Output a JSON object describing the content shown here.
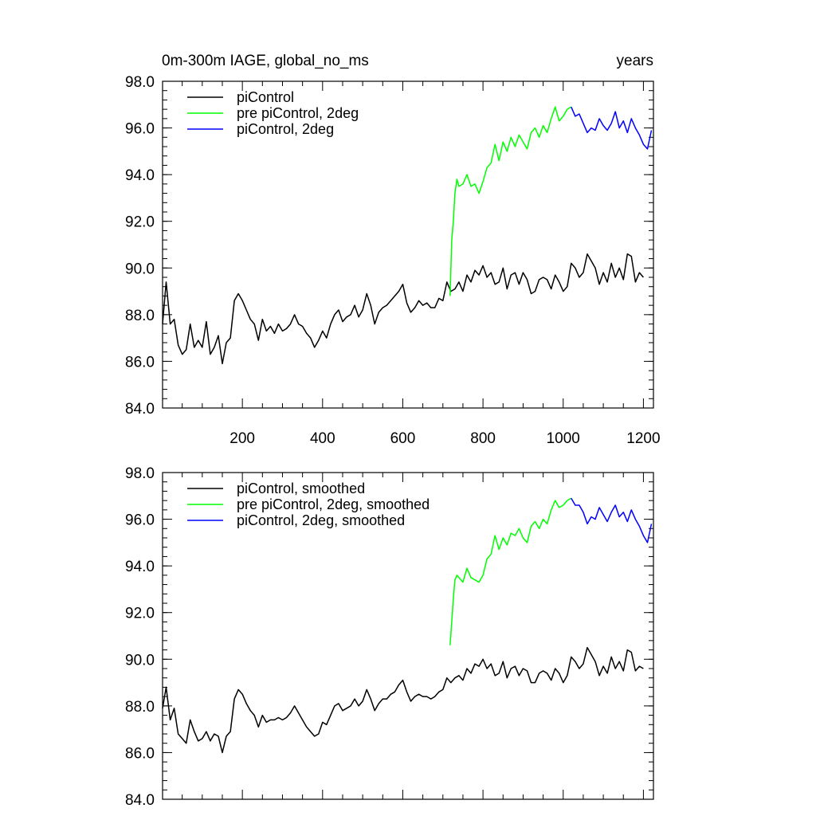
{
  "figure": {
    "title_left": "0m-300m IAGE, global_no_ms",
    "title_right": "years"
  },
  "colors": {
    "piControl": "#000000",
    "pre_piControl_2deg": "#00ff00",
    "piControl_2deg": "#0000ff"
  },
  "chart_data": [
    {
      "type": "line",
      "panel": "raw",
      "title": "0m-300m IAGE, global_no_ms",
      "xlabel": "years",
      "ylabel": "",
      "xlim": [
        1,
        1225
      ],
      "ylim": [
        84.0,
        98.0
      ],
      "x_ticks": [
        200,
        400,
        600,
        800,
        1000,
        1200
      ],
      "x_tick_labels": [
        "200",
        "400",
        "600",
        "800",
        "1000",
        "1200"
      ],
      "y_ticks": [
        84.0,
        86.0,
        88.0,
        90.0,
        92.0,
        94.0,
        96.0,
        98.0
      ],
      "y_tick_labels": [
        "84.0",
        "86.0",
        "88.0",
        "90.0",
        "92.0",
        "94.0",
        "96.0",
        "98.0"
      ],
      "legend": [
        "piControl",
        "pre piControl, 2deg",
        "piControl, 2deg"
      ],
      "legend_position": "top-left",
      "series": [
        {
          "name": "piControl",
          "color_key": "piControl",
          "x": [
            1,
            10,
            20,
            30,
            40,
            50,
            60,
            70,
            80,
            90,
            100,
            110,
            120,
            130,
            140,
            150,
            160,
            170,
            180,
            190,
            200,
            210,
            220,
            230,
            240,
            250,
            260,
            270,
            280,
            290,
            300,
            310,
            320,
            330,
            340,
            350,
            360,
            370,
            380,
            390,
            400,
            410,
            420,
            430,
            440,
            450,
            460,
            470,
            480,
            490,
            500,
            510,
            520,
            530,
            540,
            550,
            560,
            570,
            580,
            590,
            600,
            610,
            620,
            630,
            640,
            650,
            660,
            670,
            680,
            690,
            700,
            710,
            720,
            730,
            740,
            750,
            760,
            770,
            780,
            790,
            800,
            810,
            820,
            830,
            840,
            850,
            860,
            870,
            880,
            890,
            900,
            910,
            920,
            930,
            940,
            950,
            960,
            970,
            980,
            990,
            1000,
            1010,
            1020,
            1030,
            1040,
            1050,
            1060,
            1070,
            1080,
            1090,
            1100,
            1110,
            1120,
            1130,
            1140,
            1150,
            1160,
            1170,
            1180,
            1190,
            1200
          ],
          "y": [
            87.6,
            89.4,
            87.6,
            87.8,
            86.7,
            86.3,
            86.5,
            87.6,
            86.6,
            86.9,
            86.6,
            87.7,
            86.3,
            86.6,
            87.1,
            85.9,
            86.8,
            87.0,
            88.6,
            88.9,
            88.6,
            88.2,
            87.8,
            87.6,
            86.9,
            87.8,
            87.3,
            87.5,
            87.2,
            87.6,
            87.3,
            87.4,
            87.6,
            88.0,
            87.6,
            87.5,
            87.2,
            87.0,
            86.6,
            86.9,
            87.3,
            87.0,
            87.6,
            88.0,
            88.2,
            87.7,
            87.9,
            88.0,
            88.4,
            87.9,
            88.2,
            88.9,
            88.4,
            87.6,
            88.1,
            88.3,
            88.4,
            88.6,
            88.8,
            89.0,
            89.3,
            88.5,
            88.1,
            88.3,
            88.6,
            88.4,
            88.5,
            88.3,
            88.3,
            88.7,
            88.6,
            89.4,
            89.0,
            89.1,
            89.4,
            89.0,
            89.7,
            89.4,
            89.9,
            89.7,
            90.1,
            89.6,
            89.8,
            89.3,
            89.4,
            90.0,
            89.1,
            89.7,
            89.8,
            89.3,
            89.8,
            89.5,
            88.9,
            89.0,
            89.5,
            89.6,
            89.5,
            89.1,
            89.7,
            89.4,
            89.0,
            89.2,
            90.2,
            90.0,
            89.6,
            89.8,
            90.6,
            90.3,
            90.0,
            89.3,
            89.8,
            89.4,
            90.2,
            89.6,
            90.0,
            89.5,
            90.6,
            90.5,
            89.4,
            89.8,
            89.6
          ]
        },
        {
          "name": "pre piControl, 2deg",
          "color_key": "pre_piControl_2deg",
          "x": [
            718,
            722,
            726,
            730,
            735,
            740,
            750,
            760,
            770,
            780,
            790,
            800,
            810,
            820,
            830,
            840,
            850,
            860,
            870,
            880,
            890,
            900,
            910,
            920,
            930,
            940,
            950,
            960,
            970,
            980,
            990,
            1000,
            1010,
            1020
          ],
          "y": [
            88.8,
            91.2,
            92.0,
            93.2,
            93.8,
            93.5,
            93.6,
            94.0,
            93.5,
            93.6,
            93.2,
            93.7,
            94.3,
            94.5,
            95.3,
            94.6,
            95.4,
            95.0,
            95.6,
            95.2,
            95.7,
            95.4,
            95.1,
            95.8,
            96.0,
            95.6,
            96.1,
            95.8,
            96.4,
            96.9,
            96.3,
            96.5,
            96.8,
            96.9
          ]
        },
        {
          "name": "piControl, 2deg",
          "color_key": "piControl_2deg",
          "x": [
            1020,
            1030,
            1040,
            1050,
            1060,
            1070,
            1080,
            1090,
            1100,
            1110,
            1120,
            1130,
            1140,
            1150,
            1160,
            1170,
            1180,
            1190,
            1200,
            1210,
            1220
          ],
          "y": [
            96.9,
            96.5,
            96.6,
            96.2,
            95.8,
            96.0,
            95.9,
            96.4,
            96.1,
            95.9,
            96.2,
            96.7,
            96.0,
            96.3,
            95.8,
            96.4,
            96.0,
            95.7,
            95.3,
            95.1,
            95.9
          ]
        }
      ]
    },
    {
      "type": "line",
      "panel": "smoothed",
      "title": "",
      "xlabel": "",
      "ylabel": "",
      "xlim": [
        1,
        1225
      ],
      "ylim": [
        84.0,
        98.0
      ],
      "x_ticks": [
        200,
        400,
        600,
        800,
        1000,
        1200
      ],
      "x_tick_labels": [],
      "y_ticks": [
        84.0,
        86.0,
        88.0,
        90.0,
        92.0,
        94.0,
        96.0,
        98.0
      ],
      "y_tick_labels": [
        "84.0",
        "86.0",
        "88.0",
        "90.0",
        "92.0",
        "94.0",
        "96.0",
        "98.0"
      ],
      "legend": [
        "piControl, smoothed",
        "pre piControl, 2deg, smoothed",
        "piControl, 2deg, smoothed"
      ],
      "legend_position": "top-left",
      "series": [
        {
          "name": "piControl, smoothed",
          "color_key": "piControl",
          "x": [
            1,
            10,
            20,
            30,
            40,
            50,
            60,
            70,
            80,
            90,
            100,
            110,
            120,
            130,
            140,
            150,
            160,
            170,
            180,
            190,
            200,
            210,
            220,
            230,
            240,
            250,
            260,
            270,
            280,
            290,
            300,
            310,
            320,
            330,
            340,
            350,
            360,
            370,
            380,
            390,
            400,
            410,
            420,
            430,
            440,
            450,
            460,
            470,
            480,
            490,
            500,
            510,
            520,
            530,
            540,
            550,
            560,
            570,
            580,
            590,
            600,
            610,
            620,
            630,
            640,
            650,
            660,
            670,
            680,
            690,
            700,
            710,
            720,
            730,
            740,
            750,
            760,
            770,
            780,
            790,
            800,
            810,
            820,
            830,
            840,
            850,
            860,
            870,
            880,
            890,
            900,
            910,
            920,
            930,
            940,
            950,
            960,
            970,
            980,
            990,
            1000,
            1010,
            1020,
            1030,
            1040,
            1050,
            1060,
            1070,
            1080,
            1090,
            1100,
            1110,
            1120,
            1130,
            1140,
            1150,
            1160,
            1170,
            1180,
            1190,
            1200
          ],
          "y": [
            87.9,
            88.8,
            87.4,
            87.9,
            86.8,
            86.6,
            86.4,
            87.4,
            86.9,
            86.5,
            86.6,
            86.9,
            86.5,
            86.8,
            86.7,
            86.0,
            86.7,
            86.9,
            88.3,
            88.7,
            88.5,
            88.1,
            87.8,
            87.6,
            87.1,
            87.6,
            87.3,
            87.4,
            87.4,
            87.5,
            87.4,
            87.5,
            87.7,
            88.0,
            87.7,
            87.4,
            87.1,
            86.9,
            86.7,
            86.8,
            87.3,
            87.2,
            87.6,
            88.0,
            88.1,
            87.8,
            87.9,
            88.0,
            88.3,
            88.0,
            88.2,
            88.7,
            88.3,
            87.8,
            88.1,
            88.3,
            88.3,
            88.5,
            88.6,
            88.9,
            89.1,
            88.6,
            88.2,
            88.4,
            88.5,
            88.4,
            88.4,
            88.3,
            88.4,
            88.6,
            88.7,
            89.2,
            89.0,
            89.2,
            89.3,
            89.1,
            89.6,
            89.4,
            89.8,
            89.7,
            90.0,
            89.6,
            89.8,
            89.3,
            89.4,
            89.9,
            89.2,
            89.6,
            89.7,
            89.3,
            89.6,
            89.5,
            89.0,
            89.0,
            89.4,
            89.5,
            89.4,
            89.1,
            89.6,
            89.4,
            89.0,
            89.3,
            90.1,
            89.9,
            89.6,
            89.8,
            90.5,
            90.2,
            89.9,
            89.3,
            89.7,
            89.4,
            90.1,
            89.6,
            89.9,
            89.5,
            90.4,
            90.3,
            89.5,
            89.7,
            89.6
          ]
        },
        {
          "name": "pre piControl, 2deg, smoothed",
          "color_key": "pre_piControl_2deg",
          "x": [
            718,
            722,
            726,
            730,
            735,
            740,
            750,
            760,
            770,
            780,
            790,
            800,
            810,
            820,
            830,
            840,
            850,
            860,
            870,
            880,
            890,
            900,
            910,
            920,
            930,
            940,
            950,
            960,
            970,
            980,
            990,
            1000,
            1010,
            1020
          ],
          "y": [
            90.6,
            91.6,
            92.6,
            93.4,
            93.6,
            93.5,
            93.3,
            93.9,
            93.5,
            93.4,
            93.3,
            93.6,
            94.3,
            94.5,
            95.3,
            94.7,
            95.2,
            94.9,
            95.4,
            95.3,
            95.6,
            95.2,
            95.0,
            95.7,
            95.9,
            95.6,
            96.0,
            95.8,
            96.4,
            96.8,
            96.5,
            96.6,
            96.8,
            96.9
          ]
        },
        {
          "name": "piControl, 2deg, smoothed",
          "color_key": "piControl_2deg",
          "x": [
            1020,
            1030,
            1040,
            1050,
            1060,
            1070,
            1080,
            1090,
            1100,
            1110,
            1120,
            1130,
            1140,
            1150,
            1160,
            1170,
            1180,
            1190,
            1200,
            1210,
            1220
          ],
          "y": [
            96.9,
            96.6,
            96.6,
            96.3,
            95.8,
            96.1,
            96.0,
            96.5,
            96.2,
            95.9,
            96.3,
            96.6,
            96.1,
            96.3,
            95.9,
            96.4,
            96.0,
            95.7,
            95.3,
            95.0,
            95.8
          ]
        }
      ]
    }
  ]
}
